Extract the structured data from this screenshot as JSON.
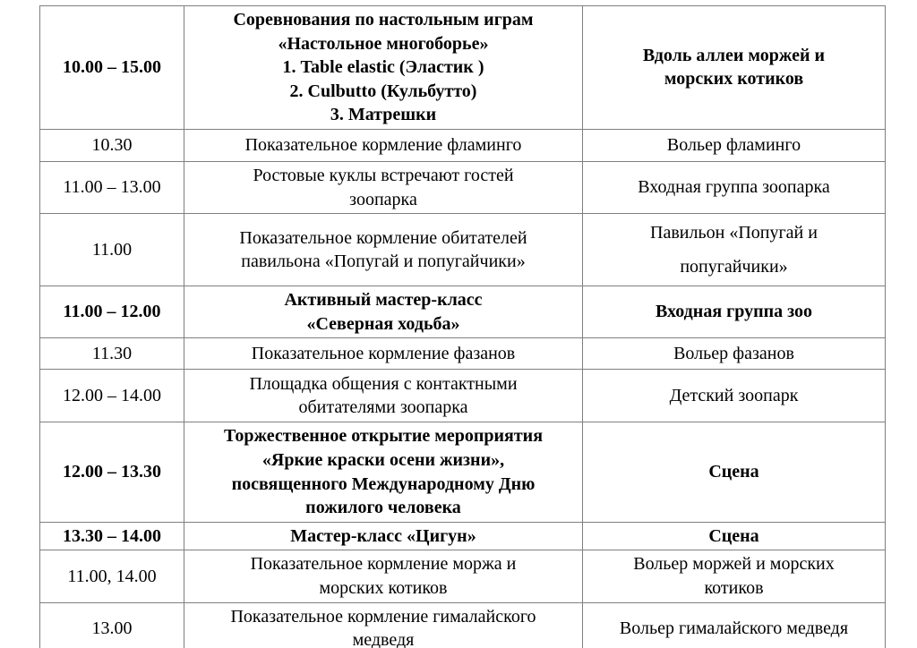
{
  "table": {
    "rows": [
      {
        "time": "10.00 – 15.00",
        "event": "Соревнования по настольным играм\n«Настольное многоборье»\n1. Table elastic (Эластик )\n2. Culbutto (Кульбутто)\n3. Матрешки",
        "location": "Вдоль аллеи моржей и\nморских котиков"
      },
      {
        "time": "10.30",
        "event": "Показательное кормление фламинго",
        "location": "Вольер фламинго"
      },
      {
        "time": "11.00 – 13.00",
        "event": "Ростовые куклы встречают гостей\nзоопарка",
        "location": "Входная группа зоопарка"
      },
      {
        "time": "11.00",
        "event": "Показательное кормление обитателей\nпавильона «Попугай и попугайчики»",
        "location": "Павильон «Попугай и\nпопугайчики»"
      },
      {
        "time": "11.00 – 12.00",
        "event": "Активный мастер-класс\n«Северная ходьба»",
        "location": "Входная группа зоо"
      },
      {
        "time": "11.30",
        "event": "Показательное кормление фазанов",
        "location": "Вольер фазанов"
      },
      {
        "time": "12.00 – 14.00",
        "event": "Площадка общения с контактными\nобитателями зоопарка",
        "location": "Детский зоопарк"
      },
      {
        "time": "12.00 – 13.30",
        "event": "Торжественное открытие мероприятия\n«Яркие краски осени жизни»,\nпосвященного Международному Дню\nпожилого человека",
        "location": "Сцена"
      },
      {
        "time": "13.30 – 14.00",
        "event": "Мастер-класс «Цигун»",
        "location": "Сцена"
      },
      {
        "time": "11.00, 14.00",
        "event": "Показательное кормление моржа и\nморских котиков",
        "location": "Вольер моржей и морских\nкотиков"
      },
      {
        "time": "13.00",
        "event": "Показательное кормление гималайского\nмедведя",
        "location": "Вольер гималайского медведя"
      }
    ]
  }
}
